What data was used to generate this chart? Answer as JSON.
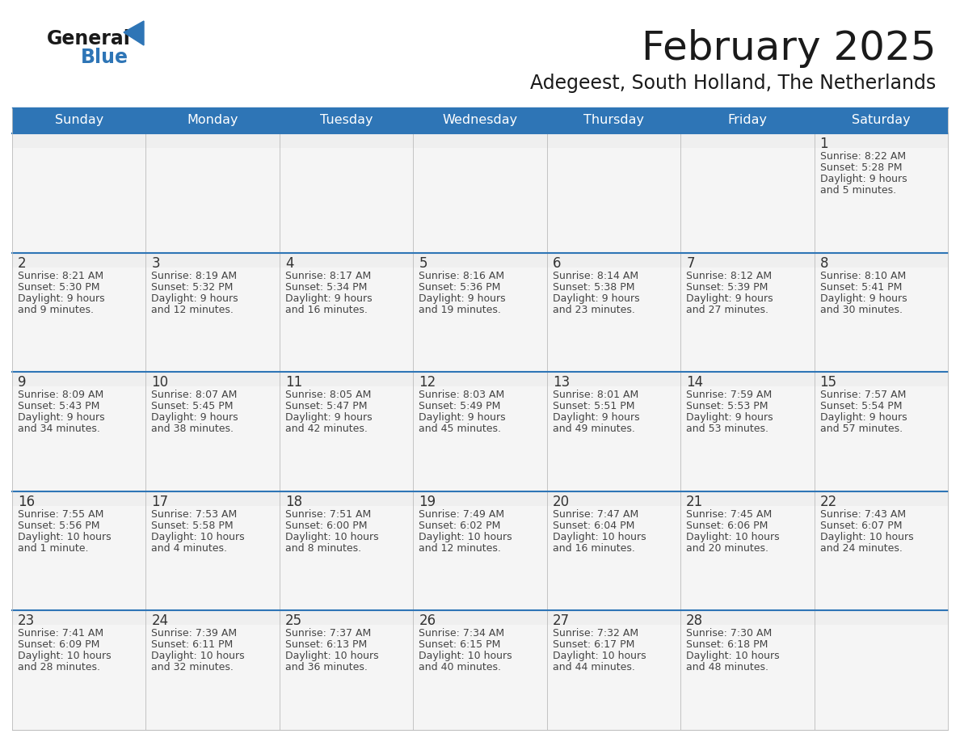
{
  "title": "February 2025",
  "subtitle": "Adegeest, South Holland, The Netherlands",
  "header_bg": "#2E75B6",
  "header_text_color": "#FFFFFF",
  "day_names": [
    "Sunday",
    "Monday",
    "Tuesday",
    "Wednesday",
    "Thursday",
    "Friday",
    "Saturday"
  ],
  "bg_color": "#FFFFFF",
  "cell_bg_top": "#EFEFEF",
  "cell_bg_main": "#F5F5F5",
  "row_divider_color": "#2E75B6",
  "cell_border_color": "#BBBBBB",
  "day_num_color": "#333333",
  "text_color": "#444444",
  "logo_general_color": "#1A1A1A",
  "logo_blue_color": "#2E75B6",
  "title_color": "#1A1A1A",
  "subtitle_color": "#1A1A1A",
  "calendar_data": [
    [
      null,
      null,
      null,
      null,
      null,
      null,
      {
        "day": 1,
        "lines": [
          "Sunrise: 8:22 AM",
          "Sunset: 5:28 PM",
          "Daylight: 9 hours",
          "and 5 minutes."
        ]
      }
    ],
    [
      {
        "day": 2,
        "lines": [
          "Sunrise: 8:21 AM",
          "Sunset: 5:30 PM",
          "Daylight: 9 hours",
          "and 9 minutes."
        ]
      },
      {
        "day": 3,
        "lines": [
          "Sunrise: 8:19 AM",
          "Sunset: 5:32 PM",
          "Daylight: 9 hours",
          "and 12 minutes."
        ]
      },
      {
        "day": 4,
        "lines": [
          "Sunrise: 8:17 AM",
          "Sunset: 5:34 PM",
          "Daylight: 9 hours",
          "and 16 minutes."
        ]
      },
      {
        "day": 5,
        "lines": [
          "Sunrise: 8:16 AM",
          "Sunset: 5:36 PM",
          "Daylight: 9 hours",
          "and 19 minutes."
        ]
      },
      {
        "day": 6,
        "lines": [
          "Sunrise: 8:14 AM",
          "Sunset: 5:38 PM",
          "Daylight: 9 hours",
          "and 23 minutes."
        ]
      },
      {
        "day": 7,
        "lines": [
          "Sunrise: 8:12 AM",
          "Sunset: 5:39 PM",
          "Daylight: 9 hours",
          "and 27 minutes."
        ]
      },
      {
        "day": 8,
        "lines": [
          "Sunrise: 8:10 AM",
          "Sunset: 5:41 PM",
          "Daylight: 9 hours",
          "and 30 minutes."
        ]
      }
    ],
    [
      {
        "day": 9,
        "lines": [
          "Sunrise: 8:09 AM",
          "Sunset: 5:43 PM",
          "Daylight: 9 hours",
          "and 34 minutes."
        ]
      },
      {
        "day": 10,
        "lines": [
          "Sunrise: 8:07 AM",
          "Sunset: 5:45 PM",
          "Daylight: 9 hours",
          "and 38 minutes."
        ]
      },
      {
        "day": 11,
        "lines": [
          "Sunrise: 8:05 AM",
          "Sunset: 5:47 PM",
          "Daylight: 9 hours",
          "and 42 minutes."
        ]
      },
      {
        "day": 12,
        "lines": [
          "Sunrise: 8:03 AM",
          "Sunset: 5:49 PM",
          "Daylight: 9 hours",
          "and 45 minutes."
        ]
      },
      {
        "day": 13,
        "lines": [
          "Sunrise: 8:01 AM",
          "Sunset: 5:51 PM",
          "Daylight: 9 hours",
          "and 49 minutes."
        ]
      },
      {
        "day": 14,
        "lines": [
          "Sunrise: 7:59 AM",
          "Sunset: 5:53 PM",
          "Daylight: 9 hours",
          "and 53 minutes."
        ]
      },
      {
        "day": 15,
        "lines": [
          "Sunrise: 7:57 AM",
          "Sunset: 5:54 PM",
          "Daylight: 9 hours",
          "and 57 minutes."
        ]
      }
    ],
    [
      {
        "day": 16,
        "lines": [
          "Sunrise: 7:55 AM",
          "Sunset: 5:56 PM",
          "Daylight: 10 hours",
          "and 1 minute."
        ]
      },
      {
        "day": 17,
        "lines": [
          "Sunrise: 7:53 AM",
          "Sunset: 5:58 PM",
          "Daylight: 10 hours",
          "and 4 minutes."
        ]
      },
      {
        "day": 18,
        "lines": [
          "Sunrise: 7:51 AM",
          "Sunset: 6:00 PM",
          "Daylight: 10 hours",
          "and 8 minutes."
        ]
      },
      {
        "day": 19,
        "lines": [
          "Sunrise: 7:49 AM",
          "Sunset: 6:02 PM",
          "Daylight: 10 hours",
          "and 12 minutes."
        ]
      },
      {
        "day": 20,
        "lines": [
          "Sunrise: 7:47 AM",
          "Sunset: 6:04 PM",
          "Daylight: 10 hours",
          "and 16 minutes."
        ]
      },
      {
        "day": 21,
        "lines": [
          "Sunrise: 7:45 AM",
          "Sunset: 6:06 PM",
          "Daylight: 10 hours",
          "and 20 minutes."
        ]
      },
      {
        "day": 22,
        "lines": [
          "Sunrise: 7:43 AM",
          "Sunset: 6:07 PM",
          "Daylight: 10 hours",
          "and 24 minutes."
        ]
      }
    ],
    [
      {
        "day": 23,
        "lines": [
          "Sunrise: 7:41 AM",
          "Sunset: 6:09 PM",
          "Daylight: 10 hours",
          "and 28 minutes."
        ]
      },
      {
        "day": 24,
        "lines": [
          "Sunrise: 7:39 AM",
          "Sunset: 6:11 PM",
          "Daylight: 10 hours",
          "and 32 minutes."
        ]
      },
      {
        "day": 25,
        "lines": [
          "Sunrise: 7:37 AM",
          "Sunset: 6:13 PM",
          "Daylight: 10 hours",
          "and 36 minutes."
        ]
      },
      {
        "day": 26,
        "lines": [
          "Sunrise: 7:34 AM",
          "Sunset: 6:15 PM",
          "Daylight: 10 hours",
          "and 40 minutes."
        ]
      },
      {
        "day": 27,
        "lines": [
          "Sunrise: 7:32 AM",
          "Sunset: 6:17 PM",
          "Daylight: 10 hours",
          "and 44 minutes."
        ]
      },
      {
        "day": 28,
        "lines": [
          "Sunrise: 7:30 AM",
          "Sunset: 6:18 PM",
          "Daylight: 10 hours",
          "and 48 minutes."
        ]
      },
      null
    ]
  ]
}
